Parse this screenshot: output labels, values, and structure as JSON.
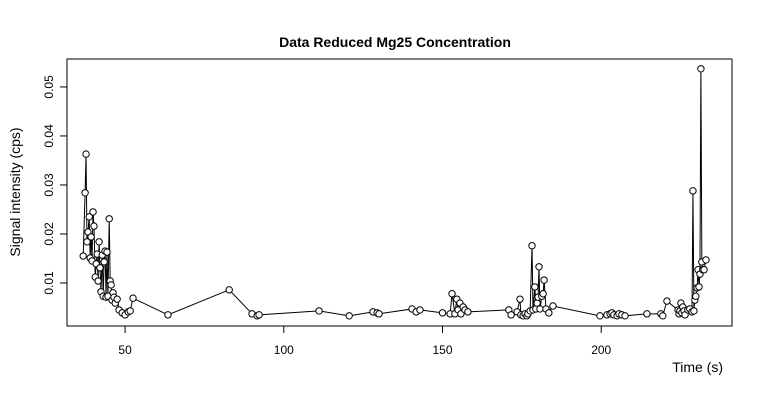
{
  "chart_data": {
    "type": "line",
    "title": "Data Reduced Mg25 Concentration",
    "x_label": "Time (s)",
    "y_label": "Signal intensity (cps)",
    "x": [
      36.8,
      37.4,
      37.7,
      38.0,
      38.3,
      38.7,
      39.0,
      39.3,
      39.6,
      39.9,
      40.2,
      40.6,
      40.9,
      41.2,
      41.5,
      41.8,
      42.1,
      42.4,
      42.8,
      43.1,
      43.4,
      43.7,
      44.0,
      44.3,
      44.6,
      45.0,
      45.3,
      45.6,
      45.9,
      46.2,
      46.5,
      46.9,
      47.5,
      48.1,
      49.1,
      50.0,
      51.0,
      51.6,
      52.5,
      63.5,
      82.8,
      90.0,
      91.6,
      92.2,
      111.1,
      120.6,
      128.1,
      129.4,
      130.0,
      140.4,
      141.7,
      142.9,
      150.0,
      152.4,
      153.0,
      153.9,
      154.5,
      154.9,
      155.5,
      155.8,
      156.5,
      157.1,
      158.0,
      170.9,
      171.6,
      173.5,
      174.4,
      174.7,
      175.4,
      176.0,
      176.6,
      176.9,
      177.6,
      178.2,
      178.5,
      179.1,
      179.4,
      179.8,
      180.1,
      180.4,
      180.7,
      181.3,
      181.7,
      182.0,
      182.6,
      183.5,
      184.8,
      199.6,
      201.8,
      202.8,
      203.4,
      204.0,
      205.0,
      205.6,
      206.5,
      207.5,
      214.4,
      218.8,
      219.4,
      220.7,
      224.2,
      224.5,
      224.8,
      225.1,
      225.4,
      225.7,
      226.1,
      226.4,
      227.3,
      227.9,
      228.6,
      228.9,
      229.2,
      229.5,
      229.8,
      230.2,
      230.5,
      230.8,
      231.1,
      231.4,
      231.7,
      232.0,
      232.4,
      233.0
    ],
    "values": [
      0.0155,
      0.0284,
      0.0363,
      0.0184,
      0.0204,
      0.0235,
      0.0151,
      0.0194,
      0.0145,
      0.0245,
      0.0216,
      0.0112,
      0.0139,
      0.0159,
      0.0104,
      0.0184,
      0.0131,
      0.0082,
      0.0157,
      0.0073,
      0.0143,
      0.0165,
      0.0071,
      0.0163,
      0.0073,
      0.0231,
      0.0104,
      0.0096,
      0.0065,
      0.008,
      0.0071,
      0.0059,
      0.0067,
      0.0045,
      0.0039,
      0.0035,
      0.0041,
      0.0043,
      0.0069,
      0.0035,
      0.0086,
      0.0037,
      0.0033,
      0.0035,
      0.0043,
      0.0033,
      0.0041,
      0.0039,
      0.0037,
      0.0047,
      0.0041,
      0.0045,
      0.0039,
      0.0037,
      0.0078,
      0.0037,
      0.0067,
      0.0045,
      0.0059,
      0.0037,
      0.0051,
      0.0045,
      0.0041,
      0.0045,
      0.0035,
      0.0041,
      0.0067,
      0.0035,
      0.0033,
      0.0037,
      0.0033,
      0.0037,
      0.0043,
      0.0176,
      0.0045,
      0.0092,
      0.0047,
      0.0059,
      0.0071,
      0.0133,
      0.0047,
      0.0073,
      0.0078,
      0.0106,
      0.0047,
      0.0039,
      0.0053,
      0.0033,
      0.0035,
      0.0037,
      0.0039,
      0.0035,
      0.0033,
      0.0037,
      0.0035,
      0.0033,
      0.0037,
      0.0037,
      0.0033,
      0.0063,
      0.0045,
      0.0037,
      0.0043,
      0.0059,
      0.0039,
      0.0051,
      0.0043,
      0.0035,
      0.0045,
      0.0047,
      0.0041,
      0.0288,
      0.0043,
      0.0065,
      0.0073,
      0.009,
      0.0127,
      0.0092,
      0.0118,
      0.0537,
      0.0143,
      0.0127,
      0.0127,
      0.0147
    ],
    "color": "#000000",
    "xlim": [
      31.7,
      241.2
    ],
    "xticks": [
      50,
      100,
      150,
      200
    ],
    "ylim": [
      0.00122,
      0.0557
    ],
    "yticks": [
      0.01,
      0.02,
      0.03,
      0.04,
      0.05
    ]
  }
}
